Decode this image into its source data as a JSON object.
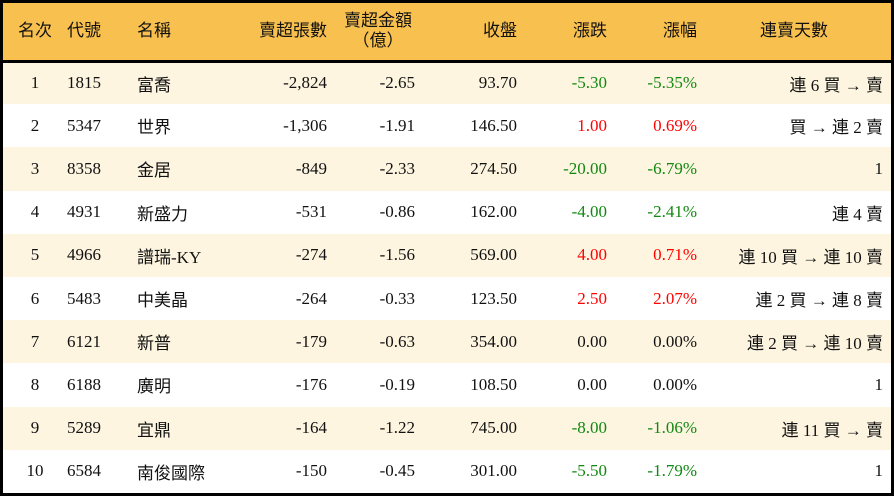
{
  "colors": {
    "header_bg": "#F8C04F",
    "stripe_bg": "#FEF5E1",
    "up": "#FF0000",
    "down": "#118811"
  },
  "headers": {
    "rank": "名次",
    "code": "代號",
    "name": "名稱",
    "shares": "賣超張數",
    "amount1": "賣超金額",
    "amount2": "（億）",
    "close": "收盤",
    "change": "漲跌",
    "pct": "漲幅",
    "days": "連賣天數"
  },
  "rows": [
    {
      "rank": "1",
      "code": "1815",
      "name": "富喬",
      "shares": "-2,824",
      "amount": "-2.65",
      "close": "93.70",
      "change": "-5.30",
      "pct": "-5.35%",
      "dir": "down",
      "days": "連 6 買 → 賣"
    },
    {
      "rank": "2",
      "code": "5347",
      "name": "世界",
      "shares": "-1,306",
      "amount": "-1.91",
      "close": "146.50",
      "change": "1.00",
      "pct": "0.69%",
      "dir": "up",
      "days": "買 → 連 2 賣"
    },
    {
      "rank": "3",
      "code": "8358",
      "name": "金居",
      "shares": "-849",
      "amount": "-2.33",
      "close": "274.50",
      "change": "-20.00",
      "pct": "-6.79%",
      "dir": "down",
      "days": "1"
    },
    {
      "rank": "4",
      "code": "4931",
      "name": "新盛力",
      "shares": "-531",
      "amount": "-0.86",
      "close": "162.00",
      "change": "-4.00",
      "pct": "-2.41%",
      "dir": "down",
      "days": "連 4 賣"
    },
    {
      "rank": "5",
      "code": "4966",
      "name": "譜瑞-KY",
      "shares": "-274",
      "amount": "-1.56",
      "close": "569.00",
      "change": "4.00",
      "pct": "0.71%",
      "dir": "up",
      "days": "連 10 買 → 連 10 賣"
    },
    {
      "rank": "6",
      "code": "5483",
      "name": "中美晶",
      "shares": "-264",
      "amount": "-0.33",
      "close": "123.50",
      "change": "2.50",
      "pct": "2.07%",
      "dir": "up",
      "days": "連 2 買 → 連 8 賣"
    },
    {
      "rank": "7",
      "code": "6121",
      "name": "新普",
      "shares": "-179",
      "amount": "-0.63",
      "close": "354.00",
      "change": "0.00",
      "pct": "0.00%",
      "dir": "flat",
      "days": "連 2 買 → 連 10 賣"
    },
    {
      "rank": "8",
      "code": "6188",
      "name": "廣明",
      "shares": "-176",
      "amount": "-0.19",
      "close": "108.50",
      "change": "0.00",
      "pct": "0.00%",
      "dir": "flat",
      "days": "1"
    },
    {
      "rank": "9",
      "code": "5289",
      "name": "宜鼎",
      "shares": "-164",
      "amount": "-1.22",
      "close": "745.00",
      "change": "-8.00",
      "pct": "-1.06%",
      "dir": "down",
      "days": "連 11 買 → 賣"
    },
    {
      "rank": "10",
      "code": "6584",
      "name": "南俊國際",
      "shares": "-150",
      "amount": "-0.45",
      "close": "301.00",
      "change": "-5.50",
      "pct": "-1.79%",
      "dir": "down",
      "days": "1"
    }
  ]
}
